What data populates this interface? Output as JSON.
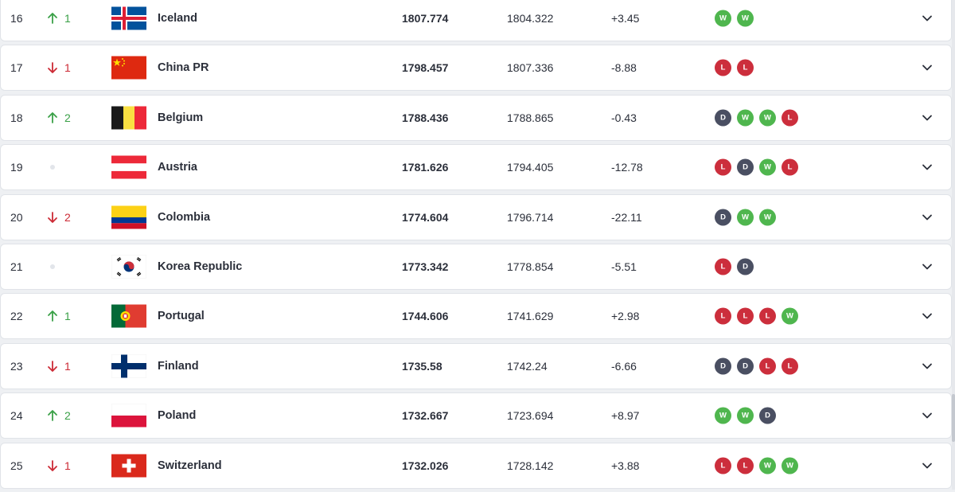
{
  "rows": [
    {
      "rank": "16",
      "move": "up",
      "change": "1",
      "team": "Iceland",
      "flag": "iceland",
      "points": "1807.774",
      "previous": "1804.322",
      "diff": "+3.45",
      "form": [
        "W",
        "W"
      ]
    },
    {
      "rank": "17",
      "move": "down",
      "change": "1",
      "team": "China PR",
      "flag": "china",
      "points": "1798.457",
      "previous": "1807.336",
      "diff": "-8.88",
      "form": [
        "L",
        "L"
      ]
    },
    {
      "rank": "18",
      "move": "up",
      "change": "2",
      "team": "Belgium",
      "flag": "belgium",
      "points": "1788.436",
      "previous": "1788.865",
      "diff": "-0.43",
      "form": [
        "D",
        "W",
        "W",
        "L"
      ]
    },
    {
      "rank": "19",
      "move": "same",
      "change": "",
      "team": "Austria",
      "flag": "austria",
      "points": "1781.626",
      "previous": "1794.405",
      "diff": "-12.78",
      "form": [
        "L",
        "D",
        "W",
        "L"
      ]
    },
    {
      "rank": "20",
      "move": "down",
      "change": "2",
      "team": "Colombia",
      "flag": "colombia",
      "points": "1774.604",
      "previous": "1796.714",
      "diff": "-22.11",
      "form": [
        "D",
        "W",
        "W"
      ]
    },
    {
      "rank": "21",
      "move": "same",
      "change": "",
      "team": "Korea Republic",
      "flag": "korea",
      "points": "1773.342",
      "previous": "1778.854",
      "diff": "-5.51",
      "form": [
        "L",
        "D"
      ]
    },
    {
      "rank": "22",
      "move": "up",
      "change": "1",
      "team": "Portugal",
      "flag": "portugal",
      "points": "1744.606",
      "previous": "1741.629",
      "diff": "+2.98",
      "form": [
        "L",
        "L",
        "L",
        "W"
      ]
    },
    {
      "rank": "23",
      "move": "down",
      "change": "1",
      "team": "Finland",
      "flag": "finland",
      "points": "1735.58",
      "previous": "1742.24",
      "diff": "-6.66",
      "form": [
        "D",
        "D",
        "L",
        "L"
      ]
    },
    {
      "rank": "24",
      "move": "up",
      "change": "2",
      "team": "Poland",
      "flag": "poland",
      "points": "1732.667",
      "previous": "1723.694",
      "diff": "+8.97",
      "form": [
        "W",
        "W",
        "D"
      ]
    },
    {
      "rank": "25",
      "move": "down",
      "change": "1",
      "team": "Switzerland",
      "flag": "switzerland",
      "points": "1732.026",
      "previous": "1728.142",
      "diff": "+3.88",
      "form": [
        "L",
        "L",
        "W",
        "W"
      ]
    }
  ],
  "colors": {
    "up": "#3aa047",
    "down": "#cc2a35",
    "win": "#4fb64e",
    "loss": "#cc2e3c",
    "draw": "#4a4f62"
  }
}
